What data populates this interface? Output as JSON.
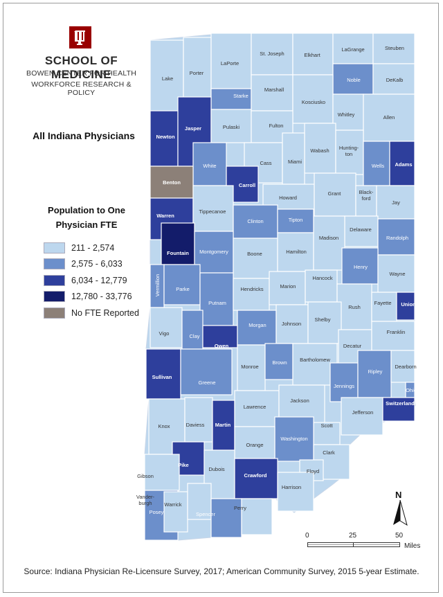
{
  "header": {
    "school": "SCHOOL OF MEDICINE",
    "center_line1": "BOWEN CENTER FOR HEALTH",
    "center_line2": "WORKFORCE RESEARCH & POLICY",
    "logo_icon": "iu-trident-logo"
  },
  "title": "All Indiana Physicians",
  "legend": {
    "title_line1": "Population to One",
    "title_line2": "Physician FTE",
    "items": [
      {
        "label": "211 - 2,574",
        "color": "#bdd7ee"
      },
      {
        "label": "2,575 - 6,033",
        "color": "#6c8fcb"
      },
      {
        "label": "6,034 - 12,779",
        "color": "#2e3f9c"
      },
      {
        "label": "12,780 - 33,776",
        "color": "#131c6a"
      },
      {
        "label": "No FTE Reported",
        "color": "#8c8078"
      }
    ]
  },
  "colors": {
    "class1": "#bdd7ee",
    "class2": "#6c8fcb",
    "class3": "#2e3f9c",
    "class4": "#131c6a",
    "nofte": "#8c8078"
  },
  "counties": [
    {
      "name": "Lake",
      "class": 1
    },
    {
      "name": "Porter",
      "class": 1
    },
    {
      "name": "LaPorte",
      "class": 1
    },
    {
      "name": "St. Joseph",
      "class": 1
    },
    {
      "name": "Elkhart",
      "class": 1
    },
    {
      "name": "LaGrange",
      "class": 1
    },
    {
      "name": "Steuben",
      "class": 1
    },
    {
      "name": "Noble",
      "class": 2
    },
    {
      "name": "DeKalb",
      "class": 1
    },
    {
      "name": "Starke",
      "class": 2
    },
    {
      "name": "Marshall",
      "class": 1
    },
    {
      "name": "Kosciusko",
      "class": 1
    },
    {
      "name": "Whitley",
      "class": 1
    },
    {
      "name": "Allen",
      "class": 1
    },
    {
      "name": "Newton",
      "class": 3
    },
    {
      "name": "Jasper",
      "class": 3
    },
    {
      "name": "Pulaski",
      "class": 1
    },
    {
      "name": "Fulton",
      "class": 1
    },
    {
      "name": "Wabash",
      "class": 1
    },
    {
      "name": "Hunting-",
      "class": 1
    },
    {
      "name": "Wells",
      "class": 2
    },
    {
      "name": "Adams",
      "class": 3
    },
    {
      "name": "White",
      "class": 2
    },
    {
      "name": "Cass",
      "class": 1
    },
    {
      "name": "Miami",
      "class": 1
    },
    {
      "name": "Benton",
      "class": 0
    },
    {
      "name": "Carroll",
      "class": 3
    },
    {
      "name": "Howard",
      "class": 1
    },
    {
      "name": "Grant",
      "class": 1
    },
    {
      "name": "Black-",
      "class": 1
    },
    {
      "name": "Jay",
      "class": 1
    },
    {
      "name": "Warren",
      "class": 3
    },
    {
      "name": "Tippecanoe",
      "class": 1
    },
    {
      "name": "Clinton",
      "class": 2
    },
    {
      "name": "Tipton",
      "class": 2
    },
    {
      "name": "Delaware",
      "class": 1
    },
    {
      "name": "Randolph",
      "class": 2
    },
    {
      "name": "Fountain",
      "class": 4
    },
    {
      "name": "Montgomery",
      "class": 2
    },
    {
      "name": "Boone",
      "class": 1
    },
    {
      "name": "Hamilton",
      "class": 1
    },
    {
      "name": "Madison",
      "class": 1
    },
    {
      "name": "Henry",
      "class": 2
    },
    {
      "name": "Wayne",
      "class": 1
    },
    {
      "name": "Vermillion",
      "class": 2
    },
    {
      "name": "Parke",
      "class": 2
    },
    {
      "name": "Putnam",
      "class": 2
    },
    {
      "name": "Hendricks",
      "class": 1
    },
    {
      "name": "Marion",
      "class": 1
    },
    {
      "name": "Hancock",
      "class": 1
    },
    {
      "name": "Rush",
      "class": 1
    },
    {
      "name": "Fayette",
      "class": 1
    },
    {
      "name": "Union",
      "class": 3
    },
    {
      "name": "Vigo",
      "class": 1
    },
    {
      "name": "Clay",
      "class": 2
    },
    {
      "name": "Owen",
      "class": 3
    },
    {
      "name": "Morgan",
      "class": 2
    },
    {
      "name": "Johnson",
      "class": 1
    },
    {
      "name": "Shelby",
      "class": 1
    },
    {
      "name": "Decatur",
      "class": 1
    },
    {
      "name": "Franklin",
      "class": 1
    },
    {
      "name": "Sullivan",
      "class": 3
    },
    {
      "name": "Greene",
      "class": 2
    },
    {
      "name": "Monroe",
      "class": 1
    },
    {
      "name": "Brown",
      "class": 2
    },
    {
      "name": "Bartholomew",
      "class": 1
    },
    {
      "name": "Jennings",
      "class": 2
    },
    {
      "name": "Ripley",
      "class": 2
    },
    {
      "name": "Dearborn",
      "class": 1
    },
    {
      "name": "Ohio",
      "class": 2
    },
    {
      "name": "Knox",
      "class": 1
    },
    {
      "name": "Daviess",
      "class": 1
    },
    {
      "name": "Martin",
      "class": 3
    },
    {
      "name": "Lawrence",
      "class": 1
    },
    {
      "name": "Jackson",
      "class": 1
    },
    {
      "name": "Jefferson",
      "class": 1
    },
    {
      "name": "Switzerland",
      "class": 3
    },
    {
      "name": "Scott",
      "class": 1
    },
    {
      "name": "Washington",
      "class": 2
    },
    {
      "name": "Orange",
      "class": 1
    },
    {
      "name": "Pike",
      "class": 3
    },
    {
      "name": "Dubois",
      "class": 1
    },
    {
      "name": "Clark",
      "class": 1
    },
    {
      "name": "Floyd",
      "class": 1
    },
    {
      "name": "Gibson",
      "class": 1
    },
    {
      "name": "Crawford",
      "class": 3
    },
    {
      "name": "Harrison",
      "class": 1
    },
    {
      "name": "Posey",
      "class": 2
    },
    {
      "name": "Vander-",
      "class": 1
    },
    {
      "name": "Warrick",
      "class": 1
    },
    {
      "name": "Spencer",
      "class": 2
    },
    {
      "name": "Perry",
      "class": 1
    }
  ],
  "label_second_lines": {
    "Hunting-": "ton",
    "Black-": "ford",
    "Vander-": "burgh"
  },
  "scale": {
    "ticks": [
      "0",
      "25",
      "50"
    ],
    "unit": "Miles"
  },
  "north_label": "N",
  "source": "Source: Indiana Physician Re-Licensure Survey, 2017; American Community Survey, 2015 5-year Estimate."
}
